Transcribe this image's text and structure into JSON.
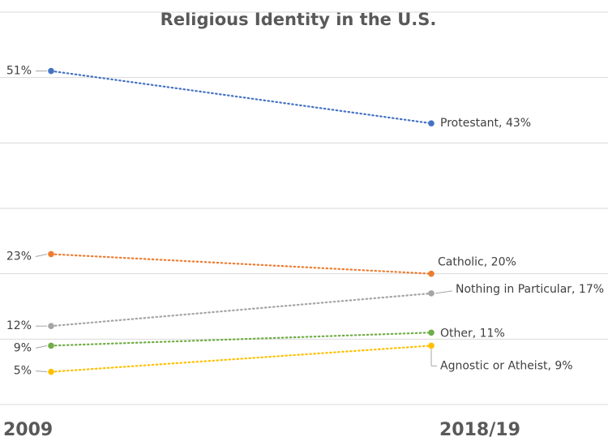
{
  "chart_data": {
    "type": "line",
    "title": "Religious Identity in the U.S.",
    "categories": [
      "2009",
      "2018/19"
    ],
    "ylim": [
      0,
      60
    ],
    "grid": true,
    "series": [
      {
        "name": "Protestant",
        "values": [
          51,
          43
        ],
        "color": "#4472C4",
        "start_label": "51%",
        "end_label": "Protestant, 43%"
      },
      {
        "name": "Catholic",
        "values": [
          23,
          20
        ],
        "color": "#ED7D31",
        "start_label": "23%",
        "end_label": "Catholic, 20%"
      },
      {
        "name": "Nothing in Particular",
        "values": [
          12,
          17
        ],
        "color": "#A5A5A5",
        "start_label": "12%",
        "end_label": "Nothing in Particular, 17%"
      },
      {
        "name": "Other",
        "values": [
          9,
          11
        ],
        "color": "#70AD47",
        "start_label": "9%",
        "end_label": "Other, 11%"
      },
      {
        "name": "Agnostic or Atheist",
        "values": [
          5,
          9
        ],
        "color": "#FFC000",
        "start_label": "5%",
        "end_label": "Agnostic or Atheist, 9%"
      }
    ]
  }
}
